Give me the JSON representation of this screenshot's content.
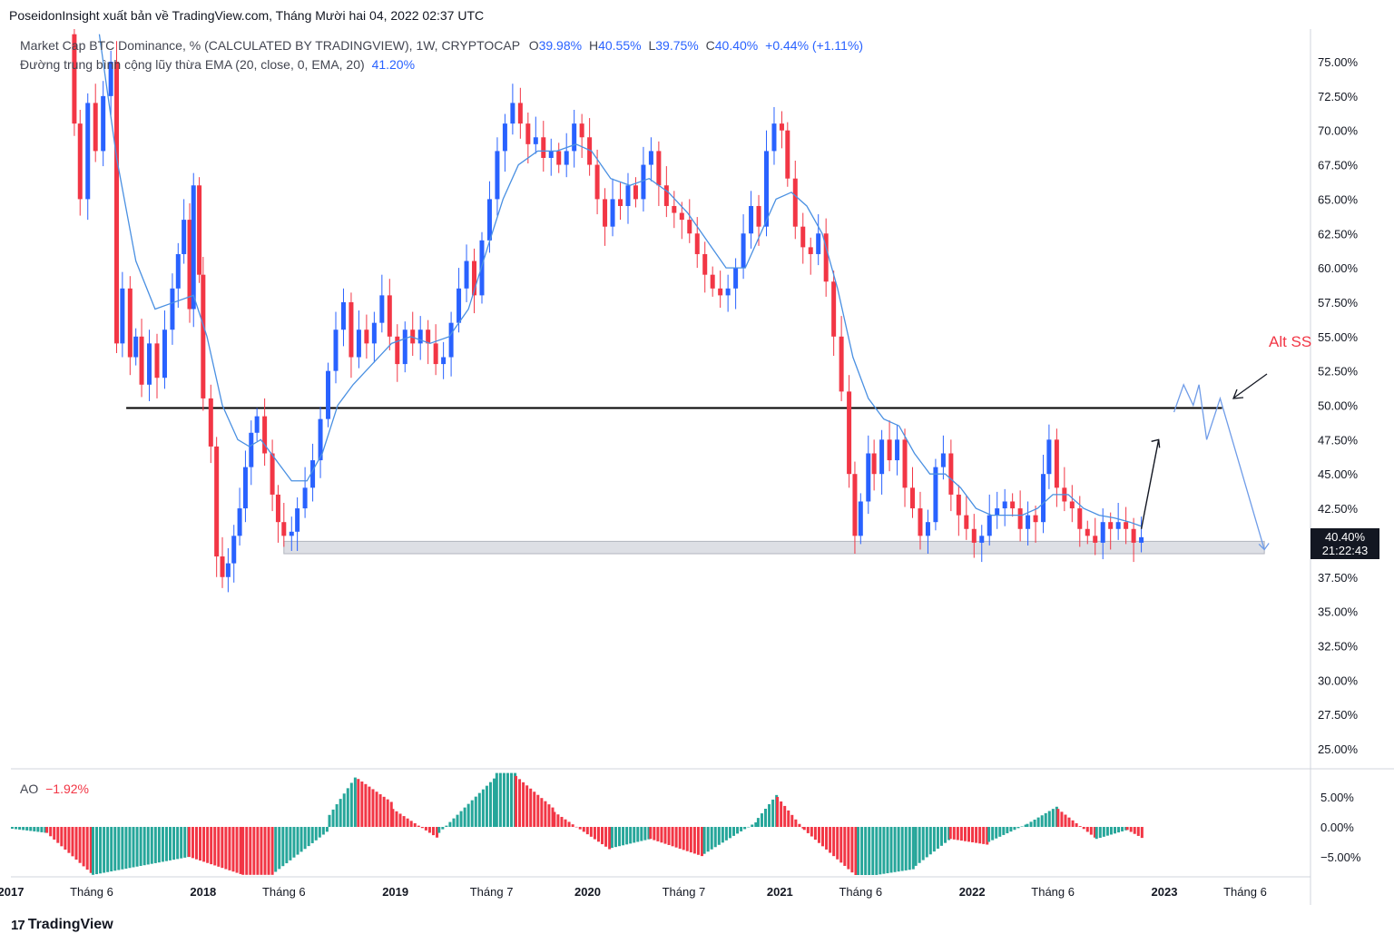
{
  "publisher": "PoseidonInsight xuất bản về TradingView.com, Tháng Mười hai 04, 2022 02:37 UTC",
  "legend": {
    "symbol": "Market Cap BTC Dominance, % (CALCULATED BY TRADINGVIEW), 1W, CRYPTOCAP",
    "o_label": "O",
    "o_val": "39.98%",
    "h_label": "H",
    "h_val": "40.55%",
    "l_label": "L",
    "l_val": "39.75%",
    "c_label": "C",
    "c_val": "40.40%",
    "change": "+0.44% (+1.11%)",
    "ema_label": "Đường trung bình cộng lũy thừa EMA (20, close, 0, EMA, 20)",
    "ema_val": "41.20%",
    "ao_label": "AO",
    "ao_val": "−1.92%"
  },
  "annotation": "Alt SS",
  "price_label": {
    "value": "40.40%",
    "countdown": "21:22:43"
  },
  "footer": {
    "logo": "17",
    "brand": "TradingView"
  },
  "colors": {
    "up": "#2962ff",
    "down": "#f23645",
    "ema": "#4a90e2",
    "ao_up": "#26a69a",
    "ao_down": "#f23645",
    "level": "#000000",
    "zone": "#d1d4dc"
  },
  "chart_data": {
    "type": "candlestick",
    "title": "Market Cap BTC Dominance, % (CALCULATED BY TRADINGVIEW), 1W, CRYPTOCAP",
    "y_axis": {
      "ylim": [
        22.5,
        77.3
      ],
      "ticks": [
        "75.00%",
        "72.50%",
        "70.00%",
        "67.50%",
        "65.00%",
        "62.50%",
        "60.00%",
        "57.50%",
        "55.00%",
        "52.50%",
        "50.00%",
        "47.50%",
        "45.00%",
        "42.50%",
        "37.50%",
        "35.00%",
        "32.50%",
        "30.00%",
        "27.50%",
        "25.00%"
      ]
    },
    "x_axis": {
      "labels": [
        {
          "t": 2017.0,
          "label": "2017",
          "bold": true
        },
        {
          "t": 2017.42,
          "label": "Tháng 6",
          "bold": false
        },
        {
          "t": 2018.0,
          "label": "2018",
          "bold": true
        },
        {
          "t": 2018.42,
          "label": "Tháng 6",
          "bold": false
        },
        {
          "t": 2019.0,
          "label": "2019",
          "bold": true
        },
        {
          "t": 2019.5,
          "label": "Tháng 7",
          "bold": false
        },
        {
          "t": 2020.0,
          "label": "2020",
          "bold": true
        },
        {
          "t": 2020.5,
          "label": "Tháng 7",
          "bold": false
        },
        {
          "t": 2021.0,
          "label": "2021",
          "bold": true
        },
        {
          "t": 2021.42,
          "label": "Tháng 6",
          "bold": false
        },
        {
          "t": 2022.0,
          "label": "2022",
          "bold": true
        },
        {
          "t": 2022.42,
          "label": "Tháng 6",
          "bold": false
        },
        {
          "t": 2023.0,
          "label": "2023",
          "bold": true
        },
        {
          "t": 2023.42,
          "label": "Tháng 6",
          "bold": false
        }
      ]
    },
    "close_series": [
      {
        "t": 2017.3,
        "v": 77.0
      },
      {
        "t": 2017.33,
        "v": 70.5
      },
      {
        "t": 2017.36,
        "v": 65.0
      },
      {
        "t": 2017.4,
        "v": 72.0
      },
      {
        "t": 2017.44,
        "v": 68.5
      },
      {
        "t": 2017.48,
        "v": 72.5
      },
      {
        "t": 2017.52,
        "v": 75.0
      },
      {
        "t": 2017.55,
        "v": 54.5
      },
      {
        "t": 2017.58,
        "v": 58.5
      },
      {
        "t": 2017.62,
        "v": 53.5
      },
      {
        "t": 2017.65,
        "v": 55.0
      },
      {
        "t": 2017.68,
        "v": 51.5
      },
      {
        "t": 2017.72,
        "v": 54.5
      },
      {
        "t": 2017.76,
        "v": 52.0
      },
      {
        "t": 2017.8,
        "v": 55.5
      },
      {
        "t": 2017.84,
        "v": 58.5
      },
      {
        "t": 2017.87,
        "v": 61.0
      },
      {
        "t": 2017.9,
        "v": 63.5
      },
      {
        "t": 2017.93,
        "v": 57.0
      },
      {
        "t": 2017.95,
        "v": 66.0
      },
      {
        "t": 2017.98,
        "v": 59.5
      },
      {
        "t": 2018.0,
        "v": 50.5
      },
      {
        "t": 2018.04,
        "v": 47.0
      },
      {
        "t": 2018.07,
        "v": 39.0
      },
      {
        "t": 2018.1,
        "v": 37.5
      },
      {
        "t": 2018.13,
        "v": 38.5
      },
      {
        "t": 2018.16,
        "v": 40.5
      },
      {
        "t": 2018.19,
        "v": 42.5
      },
      {
        "t": 2018.22,
        "v": 45.5
      },
      {
        "t": 2018.25,
        "v": 48.0
      },
      {
        "t": 2018.28,
        "v": 49.2
      },
      {
        "t": 2018.32,
        "v": 46.5
      },
      {
        "t": 2018.36,
        "v": 43.5
      },
      {
        "t": 2018.39,
        "v": 41.5
      },
      {
        "t": 2018.42,
        "v": 40.5
      },
      {
        "t": 2018.46,
        "v": 40.8
      },
      {
        "t": 2018.49,
        "v": 42.5
      },
      {
        "t": 2018.53,
        "v": 44.0
      },
      {
        "t": 2018.57,
        "v": 46.0
      },
      {
        "t": 2018.61,
        "v": 49.0
      },
      {
        "t": 2018.65,
        "v": 52.5
      },
      {
        "t": 2018.69,
        "v": 55.5
      },
      {
        "t": 2018.73,
        "v": 57.5
      },
      {
        "t": 2018.77,
        "v": 53.5
      },
      {
        "t": 2018.81,
        "v": 55.5
      },
      {
        "t": 2018.85,
        "v": 54.5
      },
      {
        "t": 2018.89,
        "v": 56.0
      },
      {
        "t": 2018.93,
        "v": 58.0
      },
      {
        "t": 2018.97,
        "v": 55.0
      },
      {
        "t": 2019.01,
        "v": 53.0
      },
      {
        "t": 2019.05,
        "v": 55.5
      },
      {
        "t": 2019.09,
        "v": 54.5
      },
      {
        "t": 2019.13,
        "v": 55.5
      },
      {
        "t": 2019.17,
        "v": 54.5
      },
      {
        "t": 2019.21,
        "v": 53.0
      },
      {
        "t": 2019.25,
        "v": 53.5
      },
      {
        "t": 2019.29,
        "v": 56.0
      },
      {
        "t": 2019.33,
        "v": 58.5
      },
      {
        "t": 2019.37,
        "v": 60.5
      },
      {
        "t": 2019.41,
        "v": 58.0
      },
      {
        "t": 2019.45,
        "v": 62.0
      },
      {
        "t": 2019.49,
        "v": 65.0
      },
      {
        "t": 2019.53,
        "v": 68.5
      },
      {
        "t": 2019.57,
        "v": 70.5
      },
      {
        "t": 2019.61,
        "v": 72.0
      },
      {
        "t": 2019.65,
        "v": 70.5
      },
      {
        "t": 2019.69,
        "v": 69.0
      },
      {
        "t": 2019.73,
        "v": 69.5
      },
      {
        "t": 2019.77,
        "v": 68.0
      },
      {
        "t": 2019.81,
        "v": 68.5
      },
      {
        "t": 2019.85,
        "v": 67.5
      },
      {
        "t": 2019.89,
        "v": 68.5
      },
      {
        "t": 2019.93,
        "v": 70.5
      },
      {
        "t": 2019.97,
        "v": 69.5
      },
      {
        "t": 2020.01,
        "v": 67.5
      },
      {
        "t": 2020.05,
        "v": 65.0
      },
      {
        "t": 2020.09,
        "v": 63.0
      },
      {
        "t": 2020.13,
        "v": 65.0
      },
      {
        "t": 2020.17,
        "v": 64.5
      },
      {
        "t": 2020.21,
        "v": 66.0
      },
      {
        "t": 2020.25,
        "v": 65.0
      },
      {
        "t": 2020.29,
        "v": 67.5
      },
      {
        "t": 2020.33,
        "v": 68.5
      },
      {
        "t": 2020.37,
        "v": 66.0
      },
      {
        "t": 2020.41,
        "v": 64.5
      },
      {
        "t": 2020.45,
        "v": 64.0
      },
      {
        "t": 2020.49,
        "v": 63.5
      },
      {
        "t": 2020.53,
        "v": 62.5
      },
      {
        "t": 2020.57,
        "v": 61.0
      },
      {
        "t": 2020.61,
        "v": 59.5
      },
      {
        "t": 2020.65,
        "v": 58.5
      },
      {
        "t": 2020.69,
        "v": 58.0
      },
      {
        "t": 2020.73,
        "v": 58.5
      },
      {
        "t": 2020.77,
        "v": 60.0
      },
      {
        "t": 2020.81,
        "v": 62.5
      },
      {
        "t": 2020.85,
        "v": 64.5
      },
      {
        "t": 2020.89,
        "v": 63.0
      },
      {
        "t": 2020.93,
        "v": 68.5
      },
      {
        "t": 2020.97,
        "v": 70.5
      },
      {
        "t": 2021.01,
        "v": 70.0
      },
      {
        "t": 2021.04,
        "v": 66.5
      },
      {
        "t": 2021.08,
        "v": 63.0
      },
      {
        "t": 2021.12,
        "v": 61.5
      },
      {
        "t": 2021.16,
        "v": 61.0
      },
      {
        "t": 2021.2,
        "v": 62.5
      },
      {
        "t": 2021.24,
        "v": 59.0
      },
      {
        "t": 2021.28,
        "v": 55.0
      },
      {
        "t": 2021.32,
        "v": 51.0
      },
      {
        "t": 2021.36,
        "v": 45.0
      },
      {
        "t": 2021.39,
        "v": 40.5
      },
      {
        "t": 2021.42,
        "v": 43.0
      },
      {
        "t": 2021.46,
        "v": 46.5
      },
      {
        "t": 2021.49,
        "v": 45.0
      },
      {
        "t": 2021.53,
        "v": 47.5
      },
      {
        "t": 2021.57,
        "v": 46.0
      },
      {
        "t": 2021.61,
        "v": 47.5
      },
      {
        "t": 2021.65,
        "v": 44.0
      },
      {
        "t": 2021.69,
        "v": 42.5
      },
      {
        "t": 2021.73,
        "v": 40.5
      },
      {
        "t": 2021.77,
        "v": 41.5
      },
      {
        "t": 2021.81,
        "v": 45.5
      },
      {
        "t": 2021.85,
        "v": 46.5
      },
      {
        "t": 2021.89,
        "v": 43.5
      },
      {
        "t": 2021.93,
        "v": 42.0
      },
      {
        "t": 2021.97,
        "v": 41.0
      },
      {
        "t": 2022.01,
        "v": 40.0
      },
      {
        "t": 2022.05,
        "v": 40.5
      },
      {
        "t": 2022.09,
        "v": 42.0
      },
      {
        "t": 2022.13,
        "v": 42.5
      },
      {
        "t": 2022.17,
        "v": 43.0
      },
      {
        "t": 2022.21,
        "v": 42.5
      },
      {
        "t": 2022.25,
        "v": 41.0
      },
      {
        "t": 2022.29,
        "v": 42.0
      },
      {
        "t": 2022.33,
        "v": 41.5
      },
      {
        "t": 2022.37,
        "v": 45.0
      },
      {
        "t": 2022.4,
        "v": 47.5
      },
      {
        "t": 2022.44,
        "v": 44.0
      },
      {
        "t": 2022.48,
        "v": 43.0
      },
      {
        "t": 2022.52,
        "v": 42.5
      },
      {
        "t": 2022.56,
        "v": 41.0
      },
      {
        "t": 2022.6,
        "v": 40.5
      },
      {
        "t": 2022.64,
        "v": 40.0
      },
      {
        "t": 2022.68,
        "v": 41.5
      },
      {
        "t": 2022.72,
        "v": 41.0
      },
      {
        "t": 2022.76,
        "v": 41.5
      },
      {
        "t": 2022.8,
        "v": 41.0
      },
      {
        "t": 2022.84,
        "v": 40.0
      },
      {
        "t": 2022.88,
        "v": 40.4
      }
    ],
    "ema_series": [
      {
        "t": 2017.46,
        "v": 77.0
      },
      {
        "t": 2017.55,
        "v": 68.0
      },
      {
        "t": 2017.65,
        "v": 60.5
      },
      {
        "t": 2017.75,
        "v": 57.0
      },
      {
        "t": 2017.85,
        "v": 57.5
      },
      {
        "t": 2017.95,
        "v": 58.0
      },
      {
        "t": 2018.02,
        "v": 55.0
      },
      {
        "t": 2018.1,
        "v": 50.0
      },
      {
        "t": 2018.18,
        "v": 47.5
      },
      {
        "t": 2018.24,
        "v": 47.0
      },
      {
        "t": 2018.3,
        "v": 47.5
      },
      {
        "t": 2018.38,
        "v": 46.0
      },
      {
        "t": 2018.46,
        "v": 44.5
      },
      {
        "t": 2018.54,
        "v": 44.5
      },
      {
        "t": 2018.62,
        "v": 46.5
      },
      {
        "t": 2018.7,
        "v": 50.0
      },
      {
        "t": 2018.78,
        "v": 51.5
      },
      {
        "t": 2018.88,
        "v": 53.0
      },
      {
        "t": 2018.98,
        "v": 54.5
      },
      {
        "t": 2019.08,
        "v": 55.0
      },
      {
        "t": 2019.18,
        "v": 54.5
      },
      {
        "t": 2019.28,
        "v": 55.0
      },
      {
        "t": 2019.38,
        "v": 57.0
      },
      {
        "t": 2019.48,
        "v": 61.5
      },
      {
        "t": 2019.56,
        "v": 65.0
      },
      {
        "t": 2019.64,
        "v": 67.5
      },
      {
        "t": 2019.74,
        "v": 68.5
      },
      {
        "t": 2019.84,
        "v": 68.5
      },
      {
        "t": 2019.94,
        "v": 69.0
      },
      {
        "t": 2020.02,
        "v": 68.5
      },
      {
        "t": 2020.12,
        "v": 66.5
      },
      {
        "t": 2020.22,
        "v": 66.0
      },
      {
        "t": 2020.32,
        "v": 66.5
      },
      {
        "t": 2020.42,
        "v": 65.5
      },
      {
        "t": 2020.52,
        "v": 64.0
      },
      {
        "t": 2020.62,
        "v": 62.0
      },
      {
        "t": 2020.72,
        "v": 60.0
      },
      {
        "t": 2020.82,
        "v": 60.0
      },
      {
        "t": 2020.9,
        "v": 62.5
      },
      {
        "t": 2020.98,
        "v": 65.0
      },
      {
        "t": 2021.06,
        "v": 65.5
      },
      {
        "t": 2021.14,
        "v": 64.5
      },
      {
        "t": 2021.22,
        "v": 62.5
      },
      {
        "t": 2021.3,
        "v": 58.5
      },
      {
        "t": 2021.38,
        "v": 53.5
      },
      {
        "t": 2021.46,
        "v": 50.5
      },
      {
        "t": 2021.54,
        "v": 49.0
      },
      {
        "t": 2021.62,
        "v": 48.5
      },
      {
        "t": 2021.7,
        "v": 46.5
      },
      {
        "t": 2021.78,
        "v": 45.0
      },
      {
        "t": 2021.86,
        "v": 45.0
      },
      {
        "t": 2021.94,
        "v": 44.0
      },
      {
        "t": 2022.02,
        "v": 42.5
      },
      {
        "t": 2022.1,
        "v": 42.0
      },
      {
        "t": 2022.18,
        "v": 42.0
      },
      {
        "t": 2022.26,
        "v": 42.0
      },
      {
        "t": 2022.34,
        "v": 42.5
      },
      {
        "t": 2022.42,
        "v": 43.5
      },
      {
        "t": 2022.5,
        "v": 43.5
      },
      {
        "t": 2022.58,
        "v": 42.5
      },
      {
        "t": 2022.66,
        "v": 42.0
      },
      {
        "t": 2022.74,
        "v": 41.8
      },
      {
        "t": 2022.82,
        "v": 41.5
      },
      {
        "t": 2022.88,
        "v": 41.2
      }
    ],
    "horizontal_level": {
      "value": 49.8,
      "t_start": 2017.6,
      "t_end": 2023.3
    },
    "support_zone": {
      "y_low": 39.2,
      "y_high": 40.1,
      "t_start": 2018.42,
      "t_end": 2023.52
    },
    "projection_path": [
      {
        "t": 2023.05,
        "v": 49.5
      },
      {
        "t": 2023.1,
        "v": 51.5
      },
      {
        "t": 2023.15,
        "v": 50.0
      },
      {
        "t": 2023.18,
        "v": 51.5
      },
      {
        "t": 2023.22,
        "v": 47.5
      },
      {
        "t": 2023.29,
        "v": 50.5
      },
      {
        "t": 2023.52,
        "v": 39.5
      }
    ],
    "arrow_up": {
      "t_start": 2022.88,
      "v_start": 41.0,
      "t_end": 2022.97,
      "v_end": 47.5
    },
    "ao_indicator": {
      "ylim": [
        -8.5,
        9.5
      ],
      "ticks": [
        "5.00%",
        "0.00%",
        "−5.00%"
      ],
      "segments": [
        {
          "t0": 2017.0,
          "t1": 2017.18,
          "v0": -0.3,
          "v1": -1.0,
          "color": "up"
        },
        {
          "t0": 2017.18,
          "t1": 2017.42,
          "v0": -1.0,
          "v1": -8.0,
          "color": "down"
        },
        {
          "t0": 2017.42,
          "t1": 2017.92,
          "v0": -8.0,
          "v1": -5.0,
          "color": "up"
        },
        {
          "t0": 2017.92,
          "t1": 2018.2,
          "v0": -5.0,
          "v1": -8.0,
          "color": "down"
        },
        {
          "t0": 2018.2,
          "t1": 2018.37,
          "v0": -8.0,
          "v1": -8.0,
          "color": "down"
        },
        {
          "t0": 2018.37,
          "t1": 2018.65,
          "v0": -7.5,
          "v1": -0.5,
          "color": "up"
        },
        {
          "t0": 2018.65,
          "t1": 2018.8,
          "v0": 2.0,
          "v1": 9.0,
          "color": "up"
        },
        {
          "t0": 2018.8,
          "t1": 2018.98,
          "v0": 8.0,
          "v1": 4.0,
          "color": "down"
        },
        {
          "t0": 2018.98,
          "t1": 2019.22,
          "v0": 3.0,
          "v1": -2.0,
          "color": "down"
        },
        {
          "t0": 2019.22,
          "t1": 2019.52,
          "v0": -1.0,
          "v1": 8.5,
          "color": "up"
        },
        {
          "t0": 2019.52,
          "t1": 2019.62,
          "v0": 9.0,
          "v1": 9.0,
          "color": "up"
        },
        {
          "t0": 2019.62,
          "t1": 2019.82,
          "v0": 8.5,
          "v1": 3.0,
          "color": "down"
        },
        {
          "t0": 2019.82,
          "t1": 2020.12,
          "v0": 2.5,
          "v1": -4.0,
          "color": "down"
        },
        {
          "t0": 2020.12,
          "t1": 2020.32,
          "v0": -3.5,
          "v1": -2.0,
          "color": "up"
        },
        {
          "t0": 2020.32,
          "t1": 2020.6,
          "v0": -2.0,
          "v1": -5.0,
          "color": "down"
        },
        {
          "t0": 2020.6,
          "t1": 2020.88,
          "v0": -4.5,
          "v1": 1.0,
          "color": "up"
        },
        {
          "t0": 2020.88,
          "t1": 2020.98,
          "v0": 1.5,
          "v1": 5.5,
          "color": "up"
        },
        {
          "t0": 2020.98,
          "t1": 2021.12,
          "v0": 5.0,
          "v1": -0.5,
          "color": "down"
        },
        {
          "t0": 2021.12,
          "t1": 2021.4,
          "v0": -0.5,
          "v1": -8.5,
          "color": "down"
        },
        {
          "t0": 2021.4,
          "t1": 2021.7,
          "v0": -8.5,
          "v1": -7.0,
          "color": "up"
        },
        {
          "t0": 2021.7,
          "t1": 2021.88,
          "v0": -6.5,
          "v1": -2.0,
          "color": "up"
        },
        {
          "t0": 2021.88,
          "t1": 2022.08,
          "v0": -2.0,
          "v1": -3.0,
          "color": "down"
        },
        {
          "t0": 2022.08,
          "t1": 2022.28,
          "v0": -2.5,
          "v1": 0.5,
          "color": "up"
        },
        {
          "t0": 2022.28,
          "t1": 2022.44,
          "v0": 0.5,
          "v1": 3.5,
          "color": "up"
        },
        {
          "t0": 2022.44,
          "t1": 2022.64,
          "v0": 3.0,
          "v1": -2.0,
          "color": "down"
        },
        {
          "t0": 2022.64,
          "t1": 2022.8,
          "v0": -2.0,
          "v1": -0.5,
          "color": "up"
        },
        {
          "t0": 2022.8,
          "t1": 2022.88,
          "v0": -0.5,
          "v1": -1.9,
          "color": "down"
        }
      ]
    }
  }
}
